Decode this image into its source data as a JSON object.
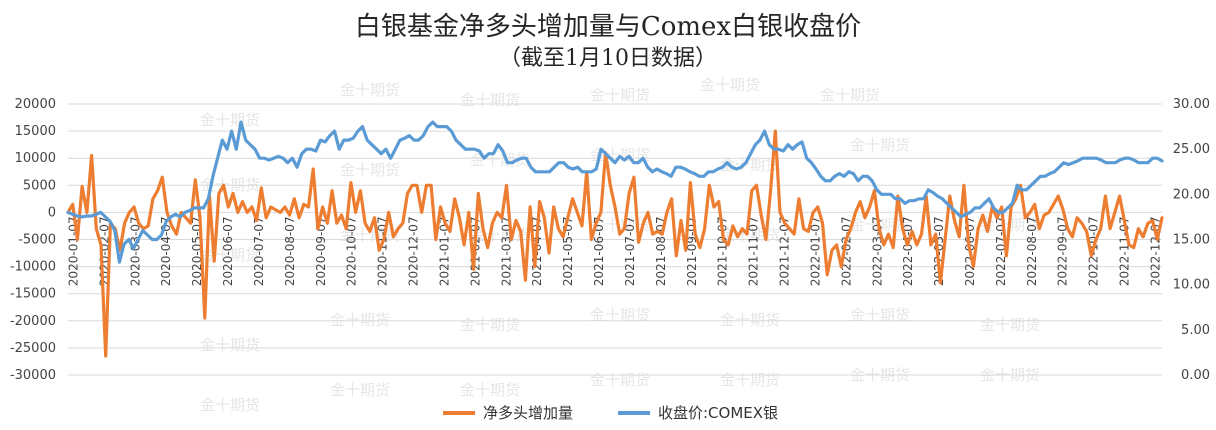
{
  "chart_data": {
    "type": "line",
    "title": "白银基金净多头增加量与Comex白银收盘价",
    "subtitle": "（截至1月10日数据）",
    "x_tick_labels": [
      "2020-01-07",
      "2020-02-07",
      "2020-03-07",
      "2020-04-07",
      "2020-05-07",
      "2020-06-07",
      "2020-07-07",
      "2020-08-07",
      "2020-09-07",
      "2020-10-07",
      "2020-11-07",
      "2020-12-07",
      "2021-01-07",
      "2021-02-07",
      "2021-03-07",
      "2021-04-07",
      "2021-05-07",
      "2021-06-07",
      "2021-07-07",
      "2021-08-07",
      "2021-09-07",
      "2021-10-07",
      "2021-11-07",
      "2021-12-07",
      "2022-01-07",
      "2022-02-07",
      "2022-03-07",
      "2022-04-07",
      "2022-05-07",
      "2022-06-07",
      "2022-07-07",
      "2022-08-07",
      "2022-09-07",
      "2022-10-07",
      "2022-11-07",
      "2022-12-07"
    ],
    "left_axis": {
      "min": -30000,
      "max": 20000,
      "step": 5000,
      "tick_labels": [
        "20000",
        "15000",
        "10000",
        "5000",
        "0",
        "-5000",
        "-10000",
        "-15000",
        "-20000",
        "-25000",
        "-30000"
      ]
    },
    "right_axis": {
      "min": 0,
      "max": 30,
      "step": 5,
      "tick_labels": [
        "30.00",
        "25.00",
        "20.00",
        "15.00",
        "10.00",
        "5.00",
        "0.00"
      ]
    },
    "grid": true,
    "legend_position": "bottom",
    "series": [
      {
        "name": "净多头增加量",
        "color": "#ED7D31",
        "axis": "left",
        "values": [
          0,
          1500,
          -5000,
          4800,
          0,
          10500,
          -3000,
          -6000,
          -26500,
          -2000,
          -3000,
          -7000,
          -2000,
          0,
          1000,
          -2000,
          -3000,
          -2500,
          2500,
          4000,
          6500,
          0,
          -2500,
          -4000,
          0,
          -1000,
          -2000,
          6000,
          -1000,
          -19500,
          3000,
          -9000,
          3500,
          5000,
          1000,
          3500,
          0,
          2000,
          0,
          1000,
          -1500,
          4500,
          -1000,
          1000,
          500,
          0,
          1000,
          -500,
          2500,
          -1000,
          1500,
          1000,
          8000,
          -3000,
          1000,
          -2000,
          4000,
          -2000,
          -500,
          -3000,
          5500,
          0,
          4000,
          -2000,
          -3500,
          -1000,
          -7000,
          -5000,
          0,
          -4500,
          -3000,
          -2000,
          3500,
          5000,
          5000,
          0,
          5000,
          5000,
          -5000,
          1000,
          -2000,
          -3500,
          2500,
          -1000,
          -6000,
          0,
          -10500,
          3500,
          -3000,
          -6500,
          -2000,
          0,
          -1000,
          5000,
          -5000,
          -1500,
          -3500,
          -12500,
          1000,
          -10000,
          2000,
          -1000,
          -7500,
          1000,
          -3000,
          -4500,
          -1000,
          2500,
          0,
          -2500,
          7500,
          -5000,
          -2000,
          0,
          11000,
          5000,
          1000,
          -4000,
          -3000,
          3500,
          6500,
          -5500,
          -2000,
          0,
          -4000,
          -3500,
          -4000,
          0,
          2500,
          -8000,
          -1500,
          -7000,
          5500,
          -4000,
          -6500,
          -3000,
          5000,
          1000,
          2000,
          -5000,
          -6000,
          -2500,
          -4500,
          -3000,
          -4000,
          4000,
          5000,
          -500,
          -5000,
          4000,
          15000,
          0,
          -2000,
          -3000,
          -4000,
          2500,
          -3000,
          -3500,
          0,
          1000,
          -2000,
          -11500,
          -7000,
          -6000,
          -10000,
          -5000,
          -3000,
          0,
          2000,
          -1000,
          1000,
          4000,
          -3000,
          -6000,
          -4000,
          -6500,
          3000,
          -3000,
          -6000,
          -3500,
          -6000,
          -4000,
          3000,
          -6000,
          -4000,
          -13000,
          -5000,
          3000,
          -1500,
          -4500,
          5000,
          -6000,
          -10000,
          -3000,
          -500,
          -3500,
          1000,
          -1000,
          1000,
          -8000,
          1000,
          2500,
          5000,
          -1000,
          0,
          1500,
          -3000,
          -500,
          0,
          1500,
          3000,
          500,
          -3000,
          -4500,
          -1000,
          -2000,
          -3500,
          -8000,
          -5000,
          -3000,
          3000,
          -3000,
          0,
          3000,
          -1500,
          -6000,
          -6500,
          -3000,
          -4500,
          -2000,
          -1500,
          -5000,
          -1000
        ]
      },
      {
        "name": "收盘价:COMEX银",
        "color": "#5B9BD5",
        "axis": "right",
        "values": [
          18,
          17.8,
          17.6,
          17.5,
          17.6,
          17.6,
          17.8,
          18,
          17.5,
          17,
          16,
          12.5,
          14.5,
          15,
          14,
          15,
          16,
          15.5,
          15,
          15,
          15.5,
          17,
          17.5,
          17.8,
          17.5,
          18,
          18.2,
          18.5,
          18.5,
          18.5,
          19.5,
          22,
          24,
          26,
          25,
          27,
          25,
          28,
          26,
          25.5,
          25,
          24,
          24,
          23.8,
          24,
          24.2,
          24,
          23.5,
          24,
          23,
          24.5,
          25,
          25,
          24.8,
          26,
          25.8,
          26.5,
          27,
          25,
          26,
          26,
          26.2,
          27,
          27.5,
          26,
          25.5,
          25,
          24.5,
          25,
          24,
          25,
          26,
          26.2,
          26.5,
          26,
          26,
          26.5,
          27.5,
          28,
          27.5,
          27.5,
          27.5,
          27,
          26,
          25.5,
          25,
          25,
          25,
          24.8,
          24,
          24.5,
          24.5,
          25.5,
          24.8,
          23.5,
          23.5,
          23.8,
          24,
          24,
          23,
          22.5,
          22.5,
          22.5,
          22.5,
          23,
          23.5,
          23.5,
          23,
          22.8,
          23,
          22.5,
          22.5,
          22.5,
          22.8,
          25,
          24.5,
          24,
          23.5,
          24.2,
          23.8,
          24.2,
          23.5,
          23.5,
          24,
          23,
          22.5,
          22.8,
          22.5,
          22.3,
          22,
          23,
          23,
          22.8,
          22.5,
          22.3,
          22,
          22,
          22.5,
          22.5,
          22.8,
          23,
          23.5,
          23,
          22.8,
          23,
          23.5,
          24.5,
          25.5,
          26,
          27,
          25.5,
          25,
          25,
          24.8,
          25.5,
          25,
          25.5,
          25.8,
          24,
          23.5,
          22.8,
          22,
          21.5,
          21.5,
          22,
          22.3,
          22,
          22.5,
          22.3,
          21.5,
          22,
          22,
          21.5,
          20.5,
          20,
          20,
          20,
          19.5,
          19.5,
          19,
          19.3,
          19.3,
          19.5,
          19.5,
          20.5,
          20.2,
          19.8,
          19.5,
          19,
          18.5,
          18,
          17.5,
          17.8,
          18,
          18.5,
          18.5,
          19,
          19.5,
          18.5,
          18,
          18,
          18.5,
          19,
          21,
          20.5,
          20.5,
          21,
          21.5,
          22,
          22,
          22.3,
          22.5,
          23,
          23.5,
          23.3,
          23.5,
          23.7,
          24,
          24,
          24,
          24,
          23.8,
          23.5,
          23.5,
          23.5,
          23.8,
          24,
          24,
          23.8,
          23.5,
          23.5,
          23.5,
          24,
          24,
          23.7
        ]
      }
    ]
  },
  "watermark_text": "金十期货"
}
